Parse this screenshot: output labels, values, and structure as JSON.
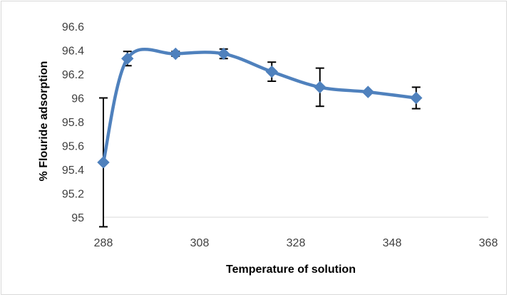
{
  "chart_data": {
    "type": "line",
    "title": "",
    "xlabel": "Temperature of solution",
    "ylabel": "% Flouride adsorption",
    "xlim": [
      288,
      368
    ],
    "ylim": [
      95,
      96.6
    ],
    "x_ticks": [
      288,
      308,
      328,
      348,
      368
    ],
    "y_ticks": [
      95,
      95.2,
      95.4,
      95.6,
      95.8,
      96,
      96.2,
      96.4,
      96.6
    ],
    "x_tick_labels": [
      "288",
      "308",
      "328",
      "348",
      "368"
    ],
    "y_tick_labels": [
      "95",
      "95.2",
      "95.4",
      "95.6",
      "95.8",
      "96",
      "96.2",
      "96.4",
      "96.6"
    ],
    "grid": false,
    "smoothed": true,
    "series": [
      {
        "color": "#4f81bd",
        "marker": "diamond",
        "x": [
          288,
          293,
          303,
          313,
          323,
          333,
          343,
          353
        ],
        "y": [
          95.46,
          96.33,
          96.37,
          96.37,
          96.22,
          96.09,
          96.05,
          96.0
        ],
        "error": [
          0.54,
          0.06,
          0.02,
          0.04,
          0.08,
          0.16,
          0.01,
          0.09
        ]
      }
    ]
  }
}
